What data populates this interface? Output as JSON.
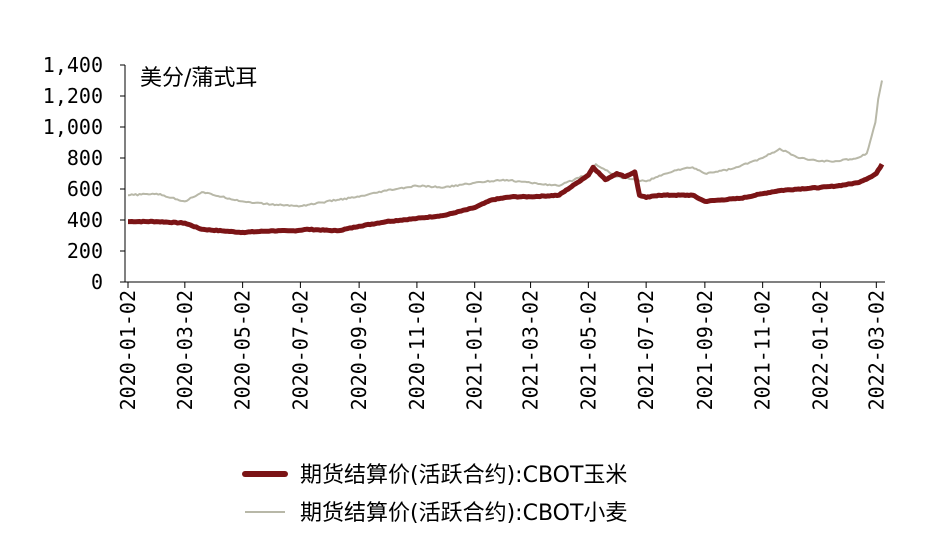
{
  "chart_data": {
    "type": "line",
    "unit_label": "美分/蒲式耳",
    "y_ticks": [
      "0",
      "200",
      "400",
      "600",
      "800",
      "1,000",
      "1,200",
      "1,400"
    ],
    "ylim": [
      0,
      1400
    ],
    "x_ticks": [
      "2020-01-02",
      "2020-03-02",
      "2020-05-02",
      "2020-07-02",
      "2020-09-02",
      "2020-11-02",
      "2021-01-02",
      "2021-03-02",
      "2021-05-02",
      "2021-07-02",
      "2021-09-02",
      "2021-11-02",
      "2022-01-02",
      "2022-03-02"
    ],
    "xlim": [
      "2020-01-02",
      "2022-03-08"
    ],
    "grid": false,
    "legend_position": "bottom",
    "series": [
      {
        "name": "期货结算价(活跃合约):CBOT玉米",
        "color": "#7b1416",
        "x": [
          "2020-01-02",
          "2020-02-01",
          "2020-03-02",
          "2020-03-20",
          "2020-04-10",
          "2020-05-02",
          "2020-06-01",
          "2020-06-25",
          "2020-07-10",
          "2020-08-10",
          "2020-09-02",
          "2020-10-01",
          "2020-11-02",
          "2020-12-01",
          "2021-01-02",
          "2021-01-20",
          "2021-02-10",
          "2021-03-02",
          "2021-04-01",
          "2021-04-20",
          "2021-05-02",
          "2021-05-07",
          "2021-05-20",
          "2021-06-01",
          "2021-06-10",
          "2021-06-20",
          "2021-06-25",
          "2021-07-02",
          "2021-07-15",
          "2021-08-01",
          "2021-08-20",
          "2021-09-02",
          "2021-09-20",
          "2021-10-10",
          "2021-11-02",
          "2021-11-20",
          "2021-12-10",
          "2022-01-02",
          "2022-01-20",
          "2022-02-10",
          "2022-02-25",
          "2022-03-02",
          "2022-03-08"
        ],
        "values": [
          390,
          390,
          380,
          340,
          330,
          320,
          330,
          330,
          340,
          330,
          360,
          390,
          410,
          430,
          480,
          530,
          550,
          550,
          560,
          640,
          690,
          740,
          660,
          700,
          680,
          710,
          560,
          545,
          560,
          560,
          560,
          520,
          530,
          540,
          570,
          590,
          600,
          610,
          620,
          640,
          680,
          700,
          760
        ]
      },
      {
        "name": "期货结算价(活跃合约):CBOT小麦",
        "color": "#b8b8a8",
        "x": [
          "2020-01-02",
          "2020-02-01",
          "2020-03-02",
          "2020-03-20",
          "2020-04-10",
          "2020-05-02",
          "2020-06-01",
          "2020-07-02",
          "2020-08-10",
          "2020-09-02",
          "2020-10-01",
          "2020-11-02",
          "2020-12-01",
          "2021-01-02",
          "2021-02-01",
          "2021-03-02",
          "2021-04-01",
          "2021-05-02",
          "2021-05-10",
          "2021-06-01",
          "2021-06-20",
          "2021-07-02",
          "2021-08-01",
          "2021-08-20",
          "2021-09-02",
          "2021-10-01",
          "2021-11-02",
          "2021-11-20",
          "2021-12-10",
          "2022-01-02",
          "2022-01-20",
          "2022-02-10",
          "2022-02-20",
          "2022-02-25",
          "2022-03-01",
          "2022-03-04",
          "2022-03-08"
        ],
        "values": [
          560,
          570,
          520,
          580,
          550,
          520,
          500,
          490,
          530,
          550,
          590,
          620,
          610,
          640,
          660,
          640,
          620,
          700,
          760,
          680,
          660,
          650,
          720,
          740,
          700,
          730,
          800,
          860,
          800,
          780,
          780,
          800,
          830,
          940,
          1030,
          1180,
          1300
        ]
      }
    ]
  }
}
